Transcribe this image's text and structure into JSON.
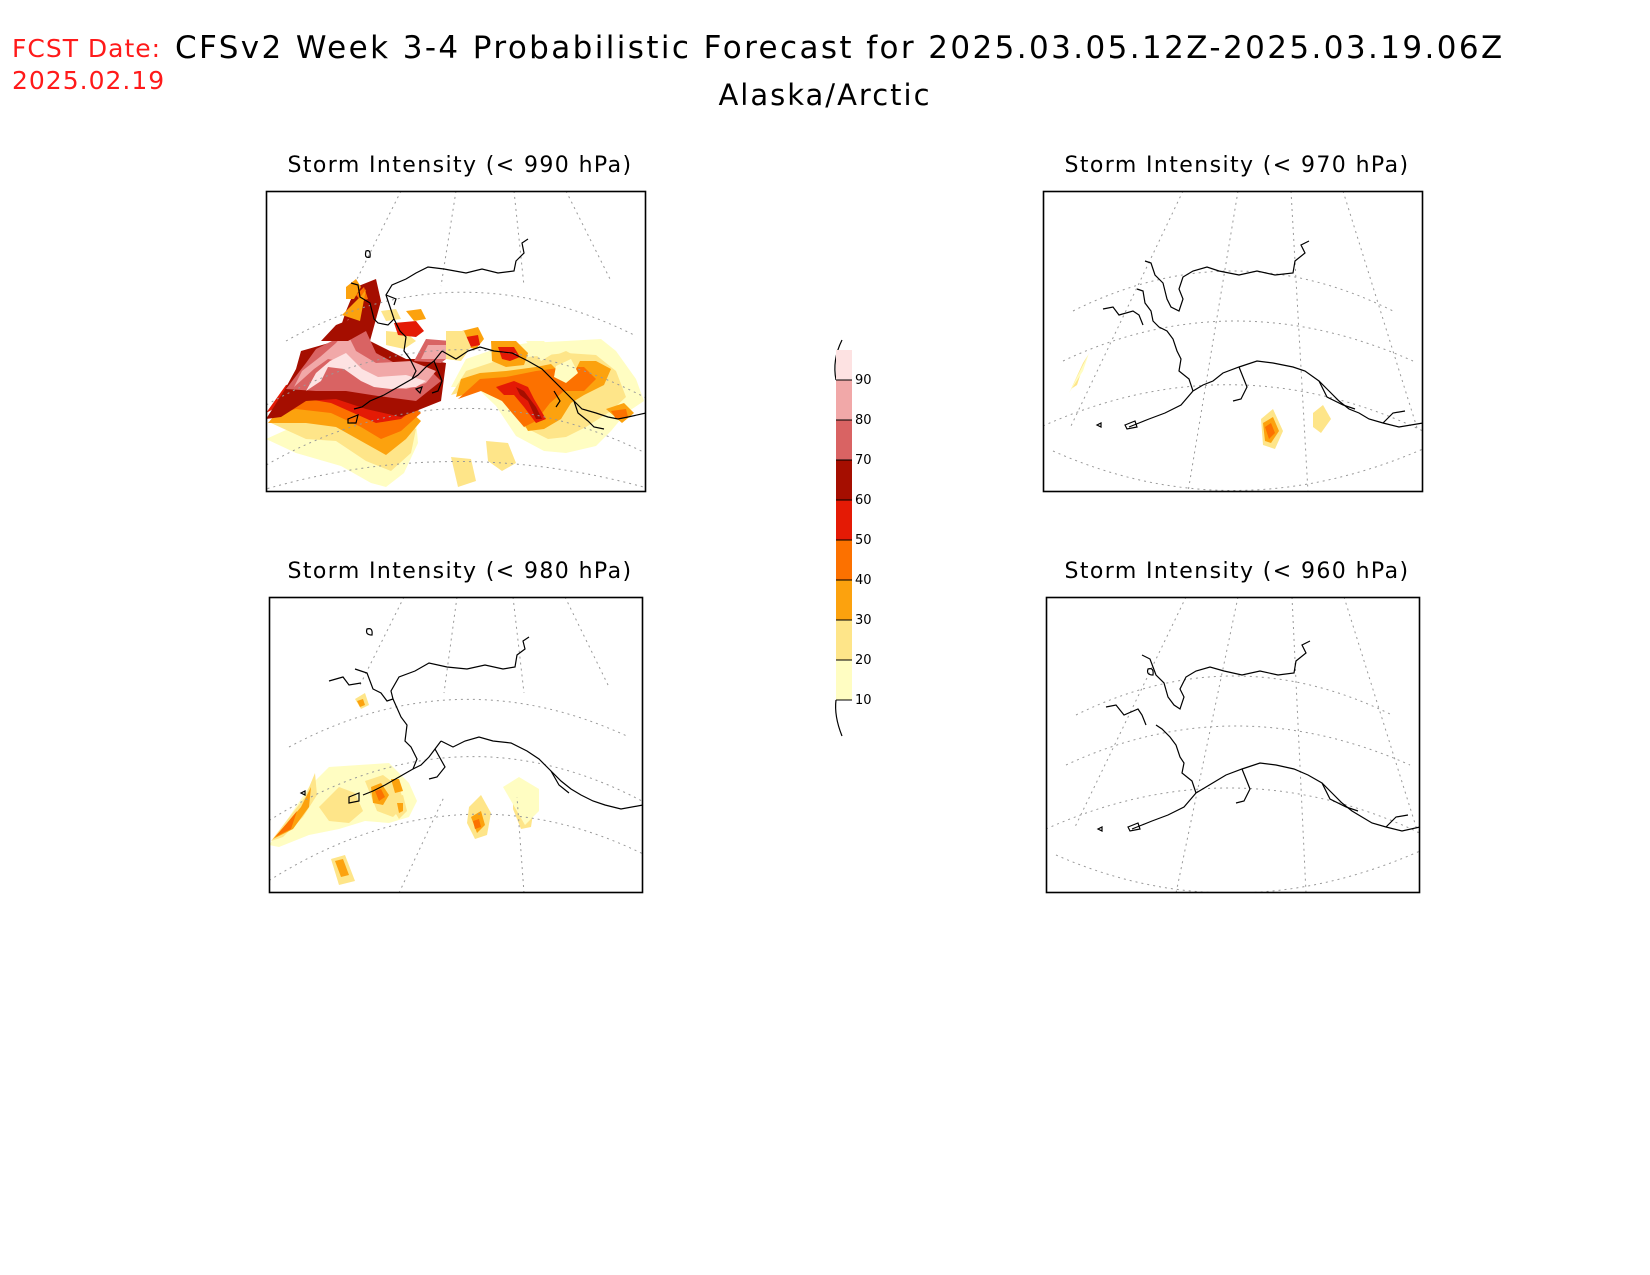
{
  "header": {
    "fcst_label": "FCST Date:",
    "fcst_date": "2025.02.19",
    "title": "CFSv2 Week 3-4 Probabilistic Forecast for 2025.03.05.12Z-2025.03.19.06Z",
    "subtitle": "Alaska/Arctic"
  },
  "panels": [
    {
      "id": "p990",
      "title": "Storm Intensity (< 990 hPa)"
    },
    {
      "id": "p970",
      "title": "Storm Intensity (< 970 hPa)"
    },
    {
      "id": "p980",
      "title": "Storm Intensity (< 980 hPa)"
    },
    {
      "id": "p960",
      "title": "Storm Intensity (< 960 hPa)"
    }
  ],
  "colorbar": {
    "levels": [
      "10",
      "20",
      "30",
      "40",
      "50",
      "60",
      "70",
      "80",
      "90"
    ],
    "colors": [
      "#fffdc2",
      "#fee589",
      "#fca20e",
      "#fc7100",
      "#e41a05",
      "#a50e00",
      "#d96363",
      "#f1a8a8",
      "#fde2e2"
    ]
  }
}
